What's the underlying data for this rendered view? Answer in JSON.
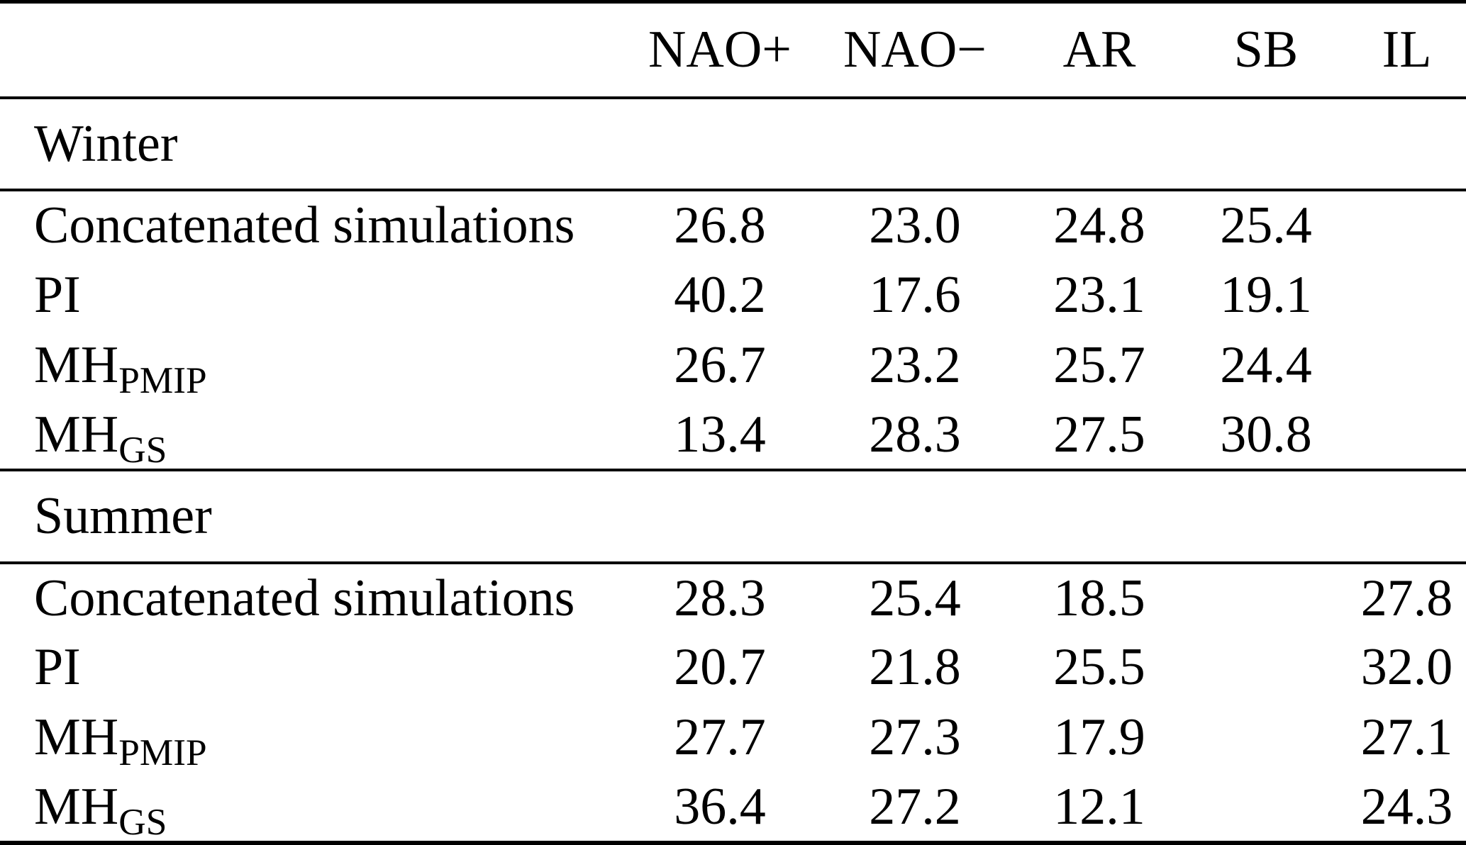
{
  "table": {
    "columns": [
      "",
      "NAO+",
      "NAO−",
      "AR",
      "SB",
      "IL"
    ],
    "sections": [
      {
        "title": "Winter",
        "rows": [
          {
            "label": "Concatenated simulations",
            "label_sub": "",
            "values": [
              "26.8",
              "23.0",
              "24.8",
              "25.4",
              ""
            ]
          },
          {
            "label": "PI",
            "label_sub": "",
            "values": [
              "40.2",
              "17.6",
              "23.1",
              "19.1",
              ""
            ]
          },
          {
            "label": "MH",
            "label_sub": "PMIP",
            "values": [
              "26.7",
              "23.2",
              "25.7",
              "24.4",
              ""
            ]
          },
          {
            "label": "MH",
            "label_sub": "GS",
            "values": [
              "13.4",
              "28.3",
              "27.5",
              "30.8",
              ""
            ]
          }
        ]
      },
      {
        "title": "Summer",
        "rows": [
          {
            "label": "Concatenated simulations",
            "label_sub": "",
            "values": [
              "28.3",
              "25.4",
              "18.5",
              "",
              "27.8"
            ]
          },
          {
            "label": "PI",
            "label_sub": "",
            "values": [
              "20.7",
              "21.8",
              "25.5",
              "",
              "32.0"
            ]
          },
          {
            "label": "MH",
            "label_sub": "PMIP",
            "values": [
              "27.7",
              "27.3",
              "17.9",
              "",
              "27.1"
            ]
          },
          {
            "label": "MH",
            "label_sub": "GS",
            "values": [
              "36.4",
              "27.2",
              "12.1",
              "",
              "24.3"
            ]
          }
        ]
      }
    ]
  }
}
